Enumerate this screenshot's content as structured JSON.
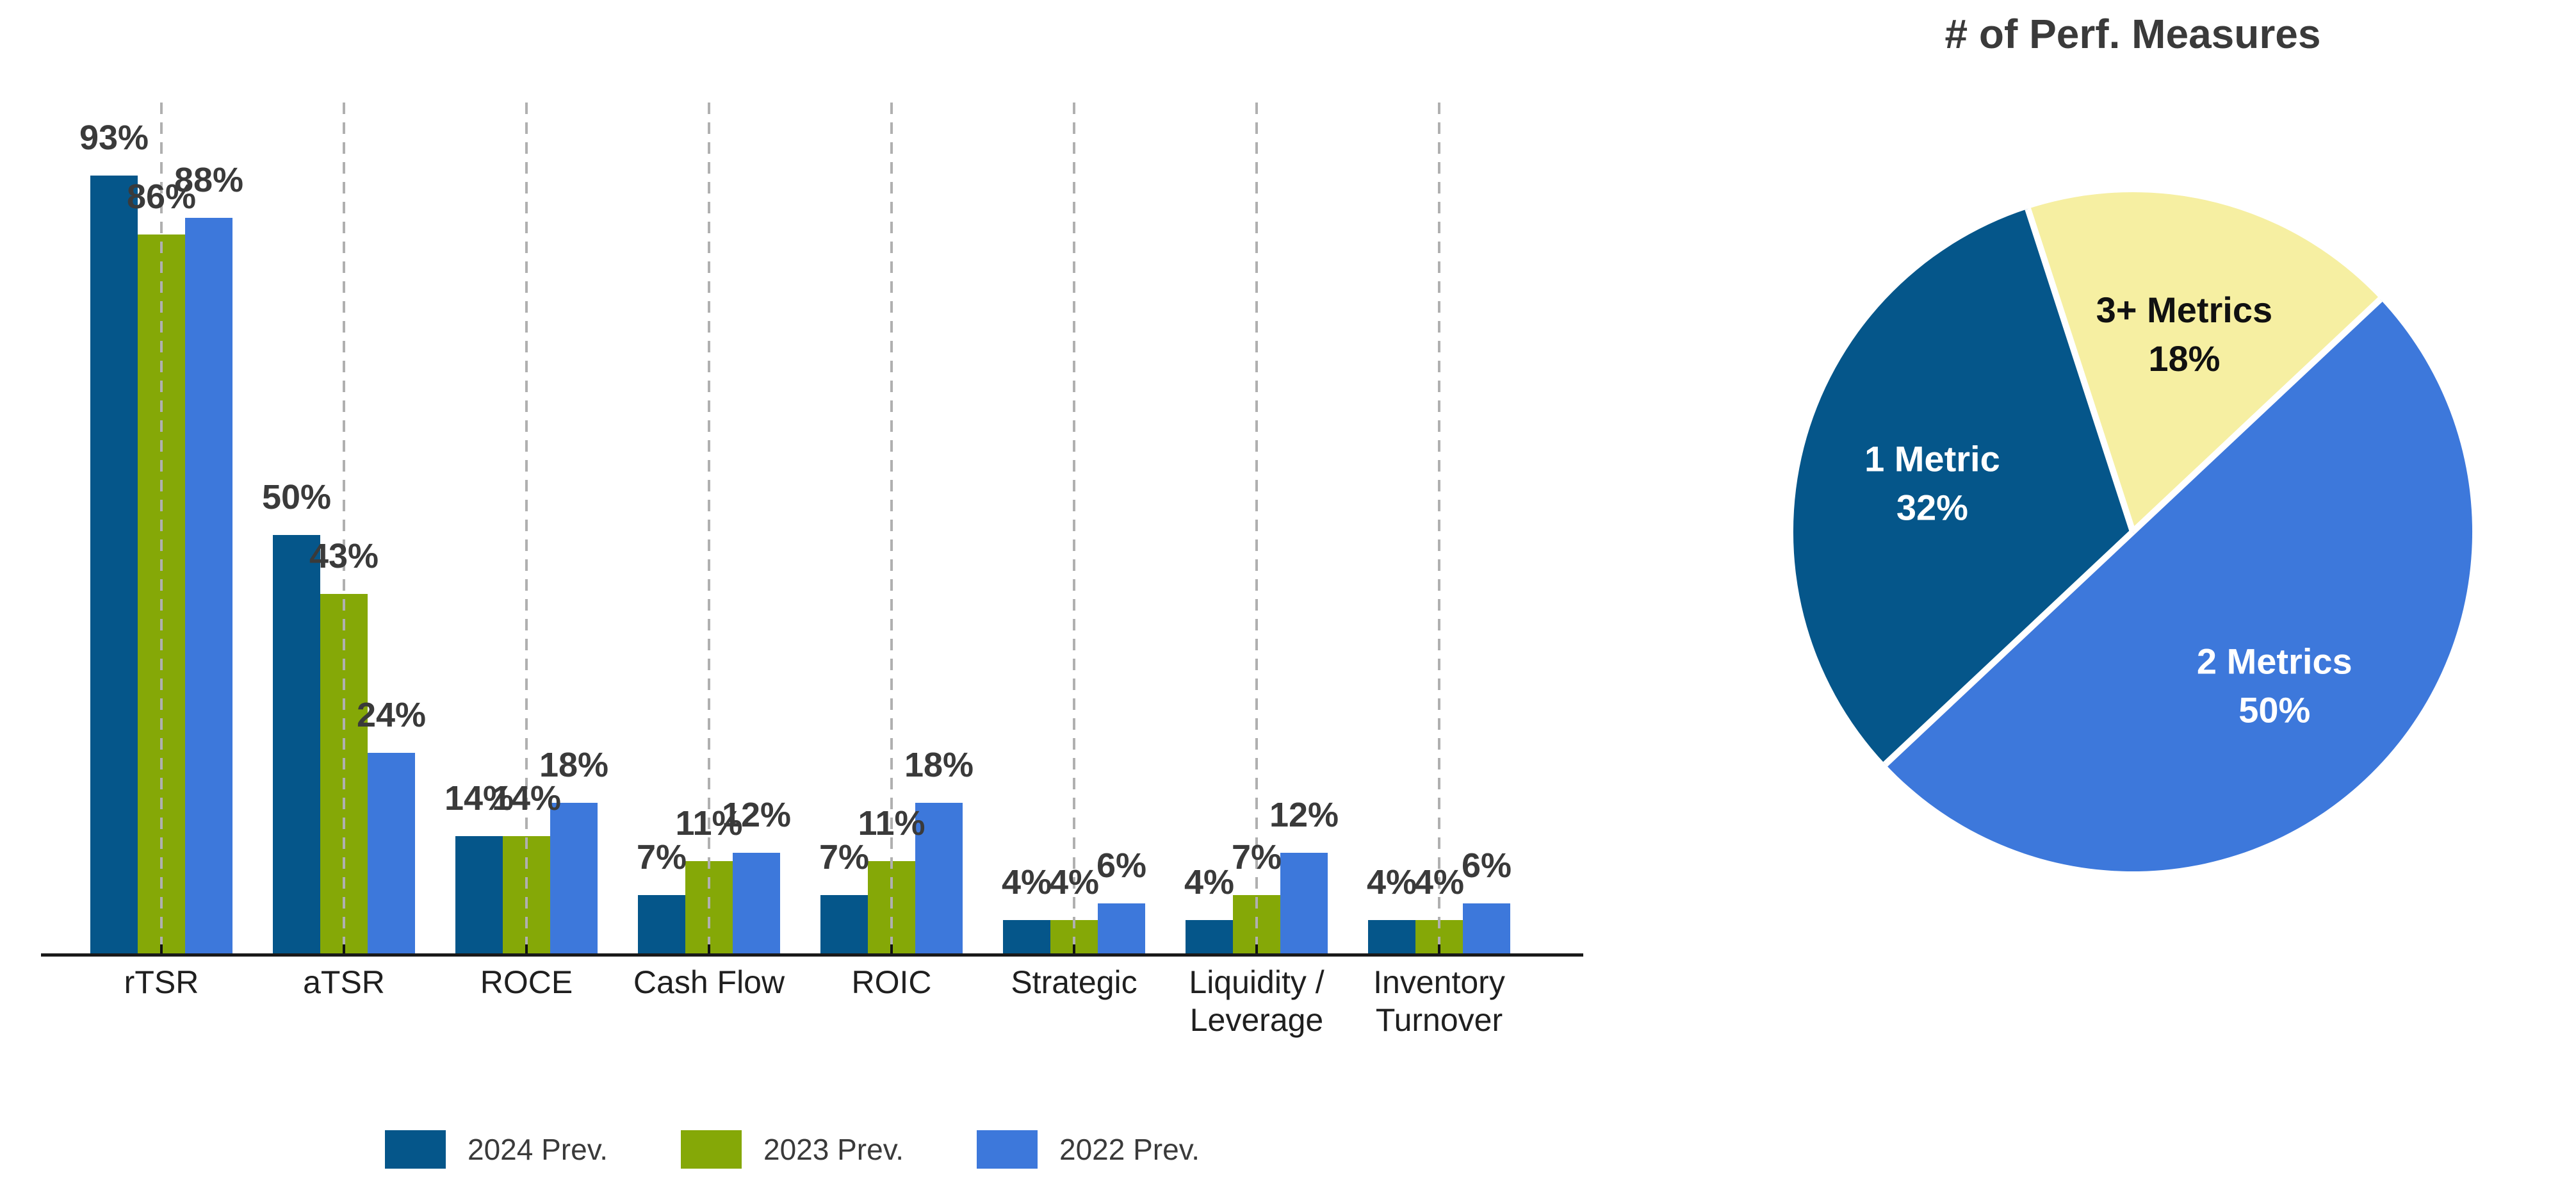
{
  "chart_data": [
    {
      "type": "bar",
      "title": "",
      "categories": [
        "rTSR",
        "aTSR",
        "ROCE",
        "Cash Flow",
        "ROIC",
        "Strategic",
        "Liquidity /\nLeverage",
        "Inventory\nTurnover"
      ],
      "series": [
        {
          "name": "2024 Prev.",
          "color": "#05568A",
          "values": [
            93,
            50,
            14,
            7,
            7,
            4,
            4,
            4
          ]
        },
        {
          "name": "2023 Prev.",
          "color": "#85A807",
          "values": [
            86,
            43,
            14,
            11,
            11,
            4,
            7,
            4
          ]
        },
        {
          "name": "2022 Prev.",
          "color": "#3D78DB",
          "values": [
            88,
            24,
            18,
            12,
            18,
            6,
            12,
            6
          ]
        }
      ],
      "value_suffix": "%",
      "ylim": [
        0,
        100
      ],
      "grid": "vertical-dashed-per-category",
      "gridline_color": "#b0b0b0",
      "axis_color": "#1a1a1a",
      "value_label_color": "#3a3a3a",
      "legend_position": "bottom"
    },
    {
      "type": "pie",
      "title": "# of Perf. Measures",
      "start_angle_deg": -18,
      "value_suffix": "%",
      "separator_color": "#FFFFFF",
      "slices": [
        {
          "label": "3+ Metrics",
          "value": 18,
          "color": "#F6EFA2",
          "text_color": "#111111"
        },
        {
          "label": "2 Metrics",
          "value": 50,
          "color": "#3D78DB",
          "text_color": "#FFFFFF"
        },
        {
          "label": "1 Metric",
          "value": 32,
          "color": "#05568A",
          "text_color": "#FFFFFF"
        }
      ]
    }
  ]
}
